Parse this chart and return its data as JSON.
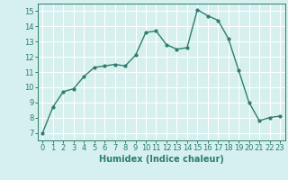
{
  "x": [
    0,
    1,
    2,
    3,
    4,
    5,
    6,
    7,
    8,
    9,
    10,
    11,
    12,
    13,
    14,
    15,
    16,
    17,
    18,
    19,
    20,
    21,
    22,
    23
  ],
  "y": [
    7,
    8.7,
    9.7,
    9.9,
    10.7,
    11.3,
    11.4,
    11.5,
    11.4,
    12.1,
    13.6,
    13.7,
    12.8,
    12.5,
    12.6,
    15.1,
    14.7,
    14.4,
    13.2,
    11.1,
    9.0,
    7.8,
    8.0,
    8.1
  ],
  "line_color": "#2e7d6e",
  "marker": "o",
  "marker_size": 2,
  "bg_color": "#d6f0ef",
  "grid_color": "#ffffff",
  "xlabel": "Humidex (Indice chaleur)",
  "xlim": [
    -0.5,
    23.5
  ],
  "ylim": [
    6.5,
    15.5
  ],
  "yticks": [
    7,
    8,
    9,
    10,
    11,
    12,
    13,
    14,
    15
  ],
  "xticks": [
    0,
    1,
    2,
    3,
    4,
    5,
    6,
    7,
    8,
    9,
    10,
    11,
    12,
    13,
    14,
    15,
    16,
    17,
    18,
    19,
    20,
    21,
    22,
    23
  ],
  "tick_fontsize": 6,
  "xlabel_fontsize": 7,
  "line_width": 1.0
}
